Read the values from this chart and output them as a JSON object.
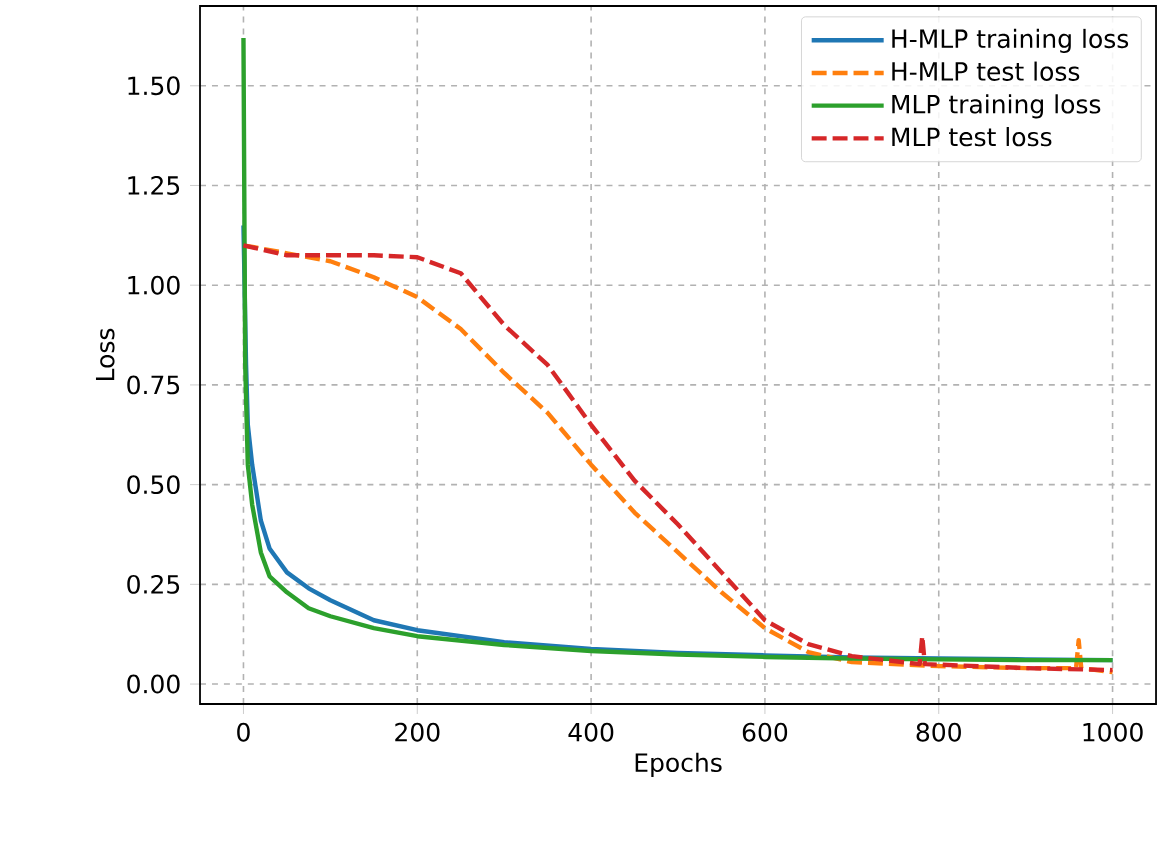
{
  "chart_data": {
    "type": "line",
    "xlabel": "Epochs",
    "ylabel": "Loss",
    "xlim": [
      -50,
      1050
    ],
    "ylim": [
      -0.05,
      1.7
    ],
    "xticks": [
      0,
      200,
      400,
      600,
      800,
      1000
    ],
    "yticks": [
      {
        "value": 0,
        "label": "0.00"
      },
      {
        "value": 0.25,
        "label": "0.25"
      },
      {
        "value": 0.5,
        "label": "0.50"
      },
      {
        "value": 0.75,
        "label": "0.75"
      },
      {
        "value": 1.0,
        "label": "1.00"
      },
      {
        "value": 1.25,
        "label": "1.25"
      },
      {
        "value": 1.5,
        "label": "1.50"
      }
    ],
    "grid": true,
    "legend": "top right",
    "marker": "none",
    "series": [
      {
        "name": "H-MLP training loss",
        "color": "#1f77b4",
        "line_style": "solid",
        "x": [
          0,
          3,
          5,
          10,
          20,
          30,
          50,
          75,
          100,
          150,
          200,
          300,
          400,
          500,
          600,
          700,
          800,
          900,
          1000
        ],
        "values": [
          1.15,
          0.8,
          0.65,
          0.55,
          0.41,
          0.34,
          0.28,
          0.24,
          0.21,
          0.16,
          0.135,
          0.105,
          0.088,
          0.078,
          0.072,
          0.067,
          0.064,
          0.062,
          0.06
        ]
      },
      {
        "name": "H-MLP test loss",
        "color": "#ff7f0e",
        "line_style": "dashed",
        "x": [
          0,
          50,
          100,
          150,
          200,
          250,
          300,
          350,
          400,
          450,
          500,
          550,
          600,
          650,
          700,
          800,
          900,
          958,
          961,
          964,
          1000
        ],
        "values": [
          1.1,
          1.08,
          1.06,
          1.02,
          0.97,
          0.89,
          0.78,
          0.68,
          0.55,
          0.43,
          0.33,
          0.23,
          0.14,
          0.08,
          0.055,
          0.045,
          0.04,
          0.04,
          0.11,
          0.04,
          0.03
        ]
      },
      {
        "name": "MLP training loss",
        "color": "#2ca02c",
        "line_style": "solid",
        "x": [
          0,
          2,
          5,
          10,
          20,
          30,
          50,
          75,
          100,
          150,
          200,
          300,
          400,
          500,
          600,
          700,
          800,
          900,
          1000
        ],
        "values": [
          1.62,
          0.8,
          0.55,
          0.45,
          0.33,
          0.27,
          0.23,
          0.19,
          0.17,
          0.14,
          0.12,
          0.098,
          0.083,
          0.074,
          0.068,
          0.064,
          0.062,
          0.06,
          0.06
        ]
      },
      {
        "name": "MLP test loss",
        "color": "#d62728",
        "line_style": "dashed",
        "x": [
          0,
          50,
          100,
          150,
          200,
          250,
          300,
          350,
          400,
          450,
          500,
          550,
          600,
          650,
          700,
          778,
          781,
          784,
          900,
          1000
        ],
        "values": [
          1.1,
          1.075,
          1.075,
          1.075,
          1.07,
          1.03,
          0.9,
          0.8,
          0.65,
          0.51,
          0.4,
          0.28,
          0.16,
          0.1,
          0.07,
          0.05,
          0.12,
          0.05,
          0.04,
          0.035
        ]
      }
    ]
  }
}
